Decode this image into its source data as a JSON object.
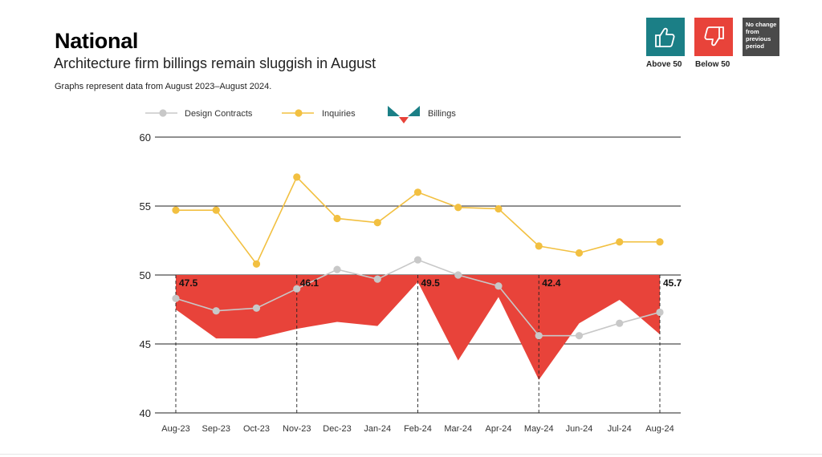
{
  "header": {
    "title": "National",
    "subtitle": "Architecture firm billings remain sluggish in August",
    "note": "Graphs represent data from August 2023–August 2024."
  },
  "badges": {
    "above_label": "Above 50",
    "below_label": "Below 50",
    "nochange_label": "No change from previous period",
    "above_color": "#1b7f86",
    "below_color": "#e8433a",
    "nochange_color": "#4a4a4a",
    "above_icon": "thumbs-up-icon",
    "below_icon": "thumbs-down-icon"
  },
  "chart_data": {
    "type": "line",
    "categories": [
      "Aug-23",
      "Sep-23",
      "Oct-23",
      "Nov-23",
      "Dec-23",
      "Jan-24",
      "Feb-24",
      "Mar-24",
      "Apr-24",
      "May-24",
      "Jun-24",
      "Jul-24",
      "Aug-24"
    ],
    "ylim": [
      40,
      60
    ],
    "yticks": [
      40,
      45,
      50,
      55,
      60
    ],
    "baseline": 50,
    "grid": true,
    "legend_position": "top-left",
    "series": [
      {
        "name": "Design Contracts",
        "style": "line-markers",
        "color": "#c8c8c8",
        "values": [
          48.3,
          47.4,
          47.6,
          49.0,
          50.4,
          49.7,
          51.1,
          50.0,
          49.2,
          45.6,
          45.6,
          46.5,
          47.3
        ]
      },
      {
        "name": "Inquiries",
        "style": "line-markers",
        "color": "#f2c041",
        "values": [
          54.7,
          54.7,
          50.8,
          57.1,
          54.1,
          53.8,
          56.0,
          54.9,
          54.8,
          52.1,
          51.6,
          52.4,
          52.4
        ]
      },
      {
        "name": "Billings",
        "style": "area-from-50",
        "color_below": "#e8433a",
        "color_above": "#1b7f86",
        "values": [
          47.5,
          45.4,
          45.4,
          46.1,
          46.6,
          46.3,
          49.5,
          43.8,
          48.4,
          42.4,
          46.5,
          48.2,
          45.7
        ]
      }
    ],
    "labeled_points": [
      {
        "index": 0,
        "label": "47.5"
      },
      {
        "index": 3,
        "label": "46.1"
      },
      {
        "index": 6,
        "label": "49.5"
      },
      {
        "index": 9,
        "label": "42.4"
      },
      {
        "index": 12,
        "label": "45.7"
      }
    ]
  }
}
